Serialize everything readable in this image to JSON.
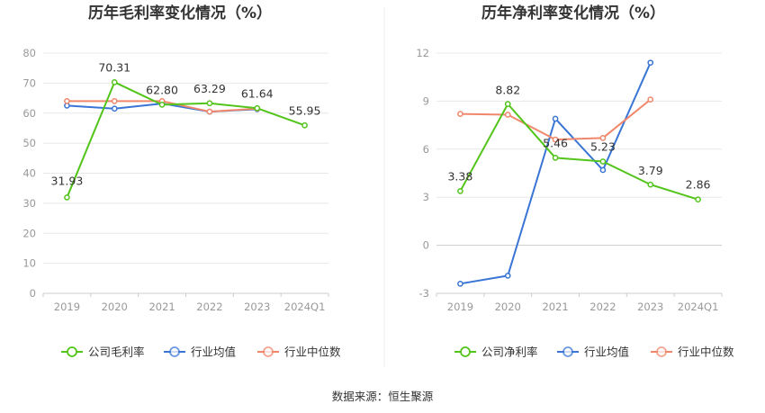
{
  "chart_data": [
    {
      "type": "line",
      "title": "历年毛利率变化情况（%）",
      "categories": [
        "2019",
        "2020",
        "2021",
        "2022",
        "2023",
        "2024Q1"
      ],
      "ylim": [
        0,
        80
      ],
      "yticks": [
        "0",
        "10",
        "20",
        "30",
        "40",
        "50",
        "60",
        "70",
        "80"
      ],
      "grid": true,
      "legend_position": "bottom",
      "series": [
        {
          "name": "公司毛利率",
          "color": "#52c41a",
          "values": [
            31.93,
            70.31,
            62.8,
            63.29,
            61.64,
            55.95
          ],
          "labels": [
            "31.93",
            "70.31",
            "62.80",
            "63.29",
            "61.64",
            "55.95"
          ]
        },
        {
          "name": "行业均值",
          "color": "#3a75d6",
          "values": [
            62.5,
            61.5,
            63.2,
            60.5,
            61.3,
            null
          ]
        },
        {
          "name": "行业中位数",
          "color": "#f0876a",
          "values": [
            64.0,
            64.0,
            64.0,
            60.5,
            61.5,
            null
          ]
        }
      ]
    },
    {
      "type": "line",
      "title": "历年净利率变化情况（%）",
      "categories": [
        "2019",
        "2020",
        "2021",
        "2022",
        "2023",
        "2024Q1"
      ],
      "ylim": [
        -3,
        12
      ],
      "yticks": [
        "-3",
        "0",
        "3",
        "6",
        "9",
        "12"
      ],
      "grid": true,
      "legend_position": "bottom",
      "series": [
        {
          "name": "公司净利率",
          "color": "#52c41a",
          "values": [
            3.38,
            8.82,
            5.46,
            5.23,
            3.79,
            2.86
          ],
          "labels": [
            "3.38",
            "8.82",
            "5.46",
            "5.23",
            "3.79",
            "2.86"
          ]
        },
        {
          "name": "行业均值",
          "color": "#3a75d6",
          "values": [
            -2.4,
            -1.9,
            7.9,
            4.7,
            11.4,
            null
          ]
        },
        {
          "name": "行业中位数",
          "color": "#f0876a",
          "values": [
            8.2,
            8.15,
            6.6,
            6.7,
            9.1,
            null
          ]
        }
      ]
    }
  ],
  "footer": {
    "source": "数据来源：恒生聚源"
  }
}
